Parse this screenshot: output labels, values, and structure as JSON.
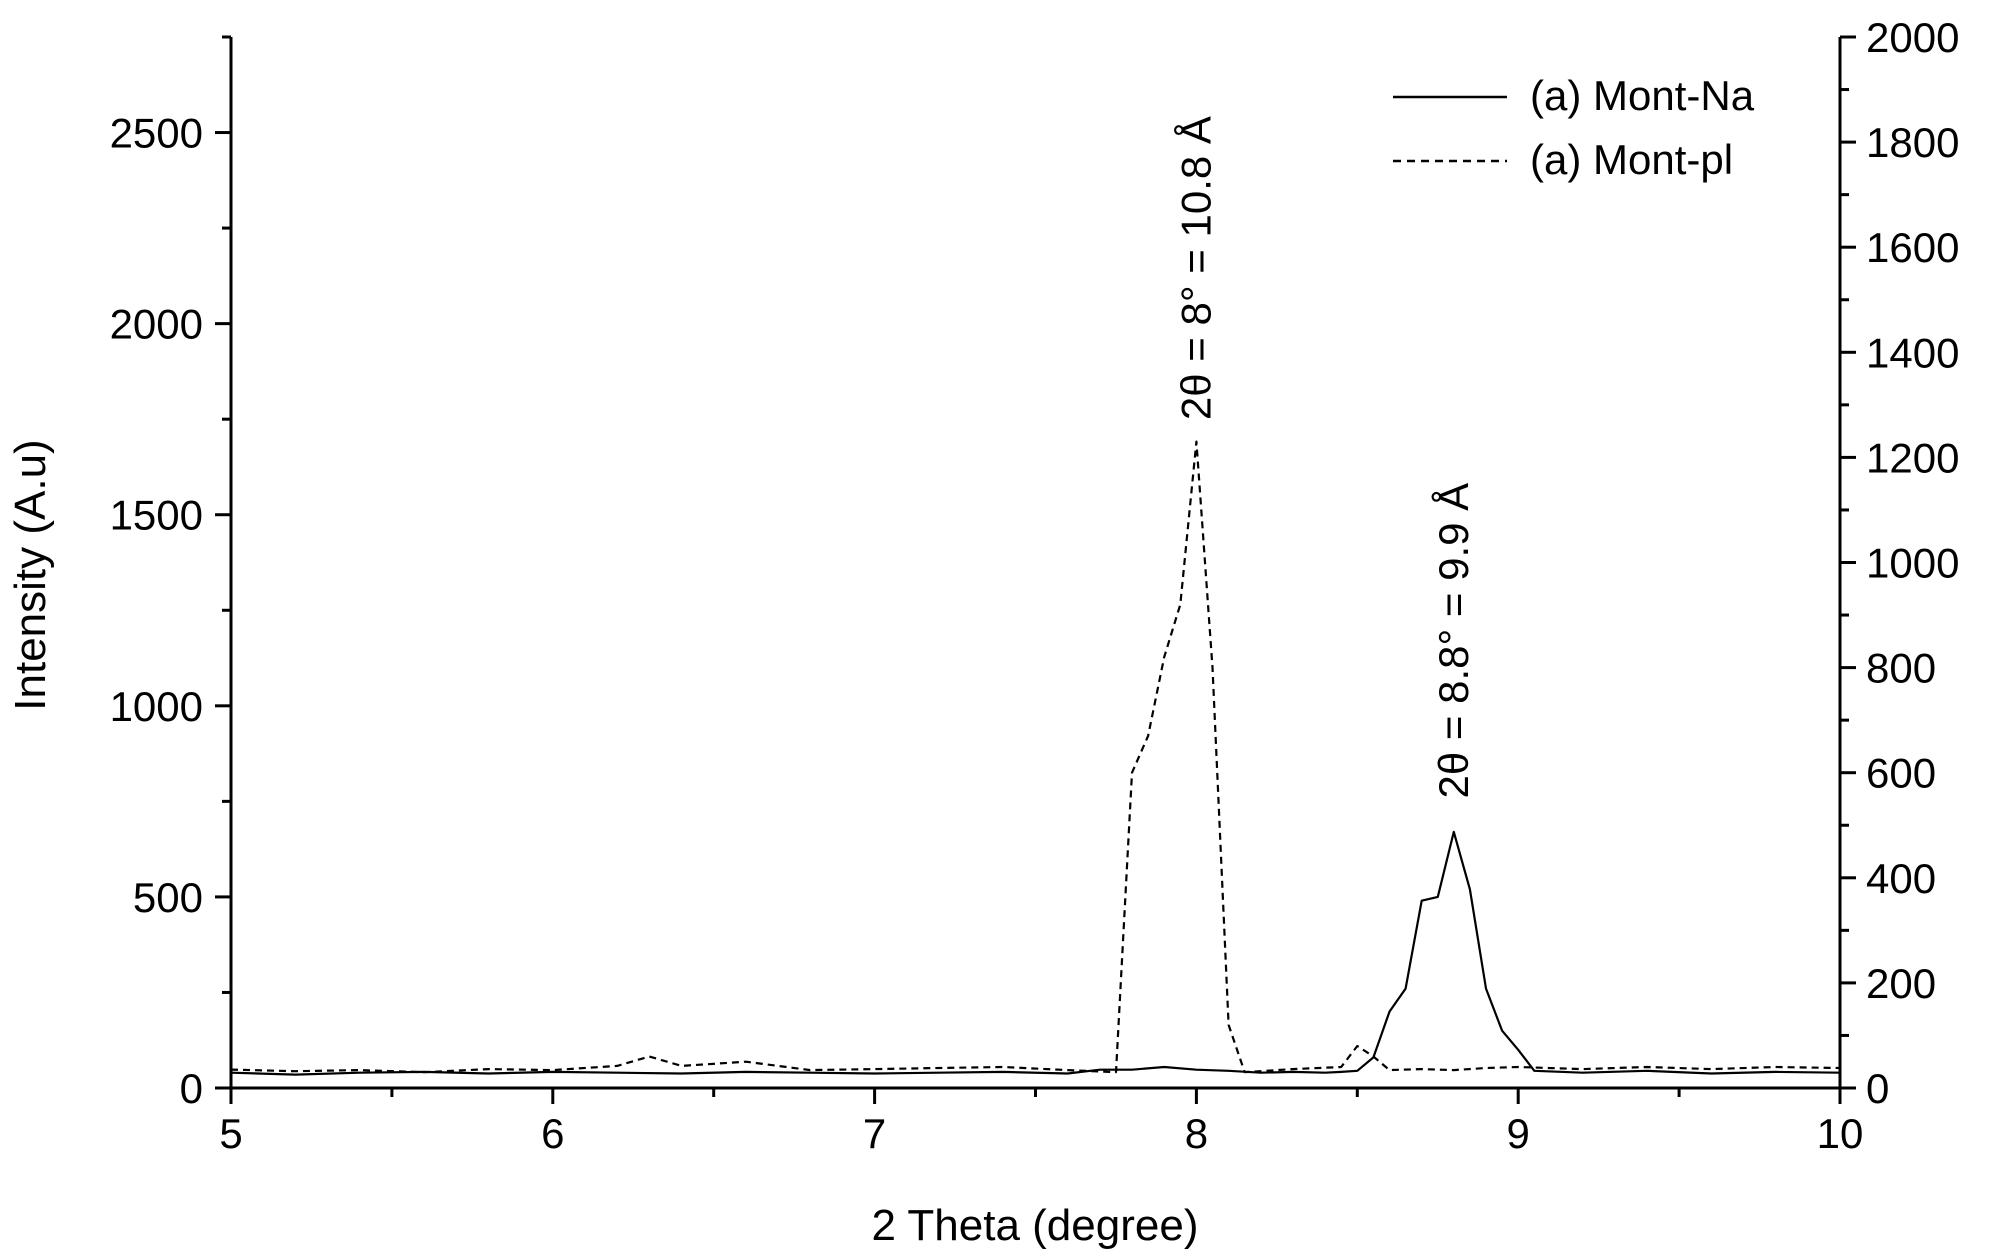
{
  "chart_data": {
    "type": "line",
    "xlabel": "2 Theta (degree)",
    "ylabel": "Intensity (A.u)",
    "xlim": [
      5,
      10
    ],
    "ylim_left": [
      0,
      2750
    ],
    "ylim_right": [
      0,
      2000
    ],
    "x_ticks": [
      "5",
      "6",
      "7",
      "8",
      "9",
      "10"
    ],
    "y_left_ticks": [
      "0",
      "500",
      "1000",
      "1500",
      "2000",
      "2500"
    ],
    "y_right_ticks": [
      "0",
      "200",
      "400",
      "600",
      "800",
      "1000",
      "1200",
      "1400",
      "1600",
      "1800",
      "2000"
    ],
    "grid": false,
    "legend_position": "top-right",
    "series": [
      {
        "name": "(a) Mont-Na",
        "style": "solid",
        "axis": "left",
        "points": [
          [
            5.0,
            40
          ],
          [
            5.2,
            35
          ],
          [
            5.4,
            40
          ],
          [
            5.6,
            42
          ],
          [
            5.8,
            38
          ],
          [
            6.0,
            42
          ],
          [
            6.2,
            40
          ],
          [
            6.4,
            38
          ],
          [
            6.6,
            42
          ],
          [
            6.8,
            40
          ],
          [
            7.0,
            38
          ],
          [
            7.2,
            40
          ],
          [
            7.4,
            42
          ],
          [
            7.6,
            38
          ],
          [
            7.7,
            48
          ],
          [
            7.8,
            48
          ],
          [
            7.9,
            55
          ],
          [
            8.0,
            48
          ],
          [
            8.1,
            45
          ],
          [
            8.2,
            40
          ],
          [
            8.3,
            42
          ],
          [
            8.4,
            40
          ],
          [
            8.45,
            42
          ],
          [
            8.5,
            45
          ],
          [
            8.55,
            80
          ],
          [
            8.6,
            200
          ],
          [
            8.65,
            260
          ],
          [
            8.7,
            490
          ],
          [
            8.75,
            500
          ],
          [
            8.8,
            670
          ],
          [
            8.85,
            520
          ],
          [
            8.9,
            260
          ],
          [
            8.95,
            150
          ],
          [
            9.0,
            100
          ],
          [
            9.05,
            45
          ],
          [
            9.2,
            40
          ],
          [
            9.4,
            45
          ],
          [
            9.6,
            38
          ],
          [
            9.8,
            42
          ],
          [
            10.0,
            40
          ]
        ]
      },
      {
        "name": "(a) Mont-pl",
        "style": "dashed",
        "axis": "right",
        "points": [
          [
            5.0,
            35
          ],
          [
            5.2,
            32
          ],
          [
            5.4,
            34
          ],
          [
            5.6,
            30
          ],
          [
            5.8,
            36
          ],
          [
            6.0,
            34
          ],
          [
            6.2,
            42
          ],
          [
            6.3,
            60
          ],
          [
            6.4,
            42
          ],
          [
            6.6,
            50
          ],
          [
            6.8,
            34
          ],
          [
            7.0,
            36
          ],
          [
            7.2,
            38
          ],
          [
            7.4,
            40
          ],
          [
            7.6,
            34
          ],
          [
            7.75,
            30
          ],
          [
            7.8,
            600
          ],
          [
            7.85,
            670
          ],
          [
            7.9,
            820
          ],
          [
            7.95,
            920
          ],
          [
            8.0,
            1230
          ],
          [
            8.05,
            800
          ],
          [
            8.1,
            120
          ],
          [
            8.15,
            30
          ],
          [
            8.3,
            36
          ],
          [
            8.45,
            40
          ],
          [
            8.5,
            80
          ],
          [
            8.55,
            60
          ],
          [
            8.6,
            34
          ],
          [
            8.7,
            36
          ],
          [
            8.8,
            34
          ],
          [
            8.9,
            38
          ],
          [
            9.0,
            40
          ],
          [
            9.2,
            36
          ],
          [
            9.4,
            40
          ],
          [
            9.6,
            36
          ],
          [
            9.8,
            40
          ],
          [
            10.0,
            38
          ]
        ]
      }
    ],
    "annotations": [
      {
        "text": "2θ = 8° = 10.8 Å",
        "x": 8.0,
        "y": 1690,
        "axis": "left"
      },
      {
        "text": "2θ = 8.8° = 9.9 Å",
        "x": 8.8,
        "y": 700,
        "axis": "left"
      }
    ]
  }
}
